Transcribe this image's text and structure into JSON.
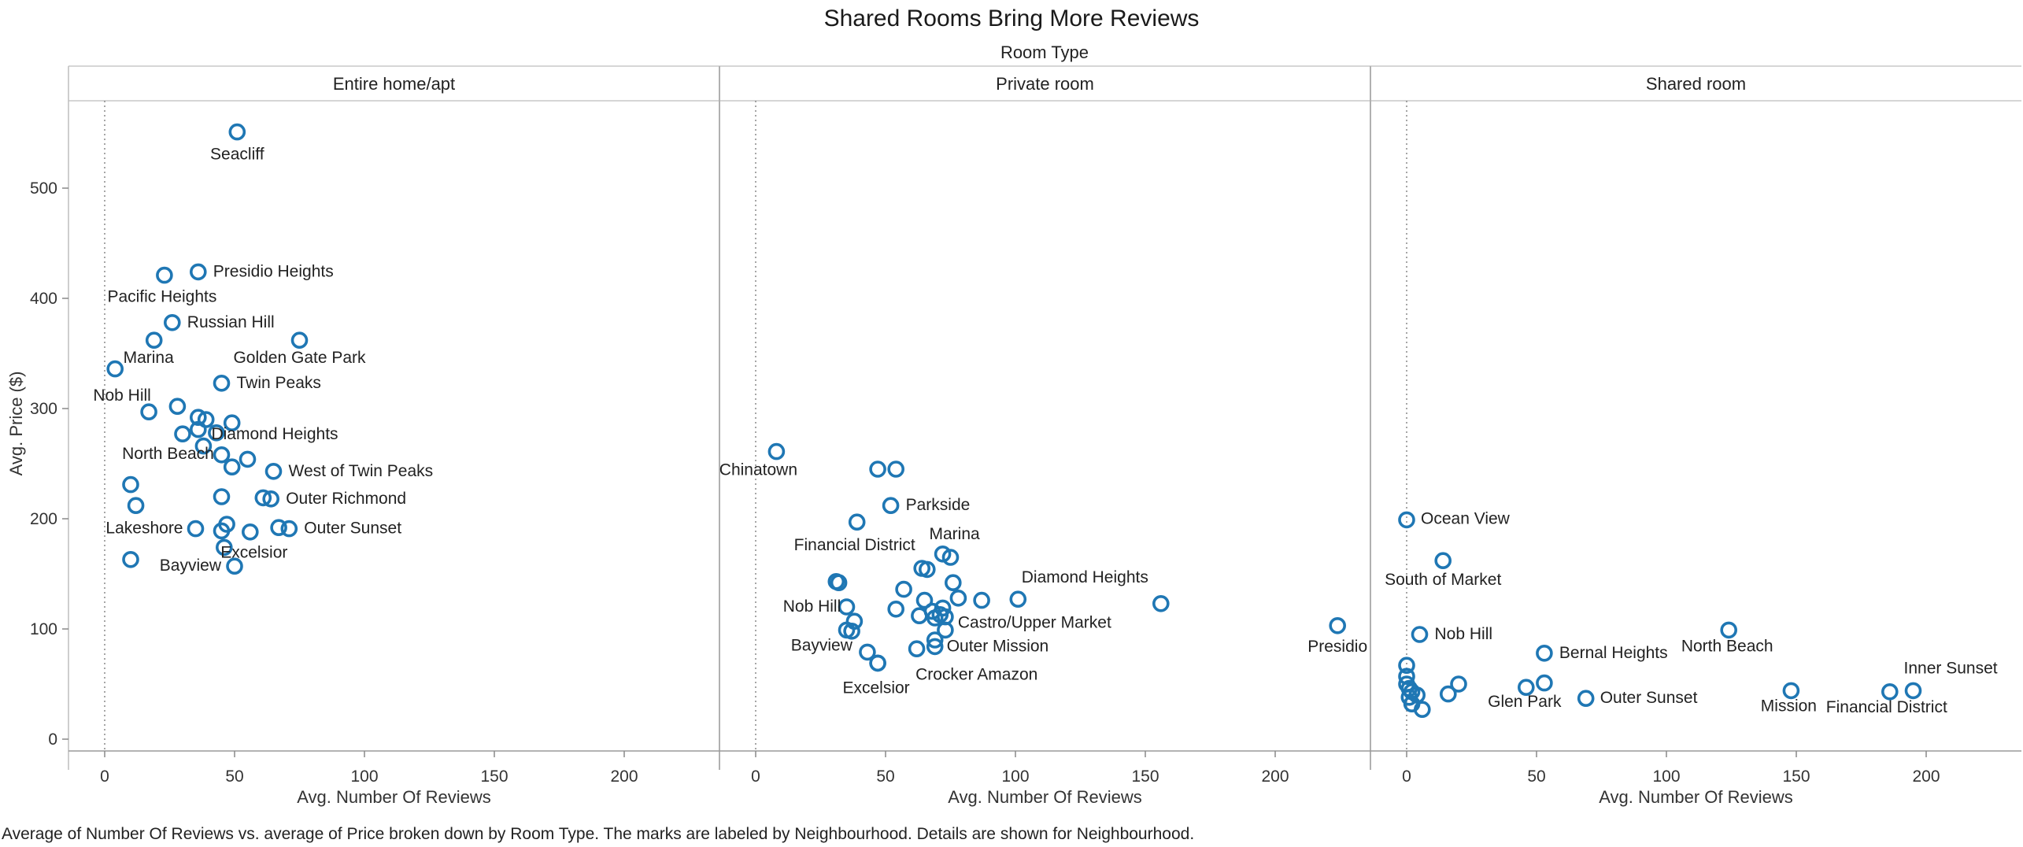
{
  "chart_data": {
    "type": "scatter",
    "title": "Shared Rooms Bring More Reviews",
    "facet_title": "Room Type",
    "xlabel": "Avg. Number Of Reviews",
    "ylabel": "Avg. Price ($)",
    "caption": "Average of Number Of Reviews vs. average of Price broken down by Room Type.  The marks are labeled by Neighbourhood.  Details are shown for Neighbourhood.",
    "xlim": [
      -14,
      236
    ],
    "ylim": [
      -10,
      575
    ],
    "xticks": [
      0,
      50,
      100,
      150,
      200
    ],
    "yticks": [
      0,
      100,
      200,
      300,
      400,
      500
    ],
    "marker_color": "#1f77b4",
    "panels": [
      {
        "name": "Entire home/apt",
        "points": [
          {
            "x": 51,
            "y": 551,
            "label": "Seacliff"
          },
          {
            "x": 36,
            "y": 424,
            "label": "Presidio Heights"
          },
          {
            "x": 23,
            "y": 421,
            "label": "Pacific Heights"
          },
          {
            "x": 26,
            "y": 378,
            "label": "Russian Hill"
          },
          {
            "x": 19,
            "y": 362,
            "label": "Marina"
          },
          {
            "x": 75,
            "y": 362,
            "label": "Golden Gate Park"
          },
          {
            "x": 4,
            "y": 336,
            "label": ""
          },
          {
            "x": 45,
            "y": 323,
            "label": "Twin Peaks"
          },
          {
            "x": 28,
            "y": 302,
            "label": ""
          },
          {
            "x": 17,
            "y": 297,
            "label": "Nob Hill"
          },
          {
            "x": 36,
            "y": 292,
            "label": ""
          },
          {
            "x": 39,
            "y": 290,
            "label": ""
          },
          {
            "x": 49,
            "y": 287,
            "label": ""
          },
          {
            "x": 36,
            "y": 281,
            "label": ""
          },
          {
            "x": 43,
            "y": 278,
            "label": ""
          },
          {
            "x": 30,
            "y": 277,
            "label": "Diamond Heights"
          },
          {
            "x": 38,
            "y": 266,
            "label": ""
          },
          {
            "x": 45,
            "y": 258,
            "label": "North Beach"
          },
          {
            "x": 55,
            "y": 254,
            "label": ""
          },
          {
            "x": 49,
            "y": 247,
            "label": ""
          },
          {
            "x": 65,
            "y": 243,
            "label": "West of Twin Peaks"
          },
          {
            "x": 10,
            "y": 231,
            "label": ""
          },
          {
            "x": 45,
            "y": 220,
            "label": ""
          },
          {
            "x": 61,
            "y": 219,
            "label": ""
          },
          {
            "x": 64,
            "y": 218,
            "label": "Outer Richmond"
          },
          {
            "x": 12,
            "y": 212,
            "label": ""
          },
          {
            "x": 47,
            "y": 195,
            "label": ""
          },
          {
            "x": 35,
            "y": 191,
            "label": "Lakeshore"
          },
          {
            "x": 67,
            "y": 192,
            "label": ""
          },
          {
            "x": 71,
            "y": 191,
            "label": "Outer Sunset"
          },
          {
            "x": 45,
            "y": 189,
            "label": ""
          },
          {
            "x": 56,
            "y": 188,
            "label": ""
          },
          {
            "x": 46,
            "y": 174,
            "label": "Excelsior"
          },
          {
            "x": 10,
            "y": 163,
            "label": ""
          },
          {
            "x": 50,
            "y": 157,
            "label": "Bayview"
          }
        ]
      },
      {
        "name": "Private room",
        "points": [
          {
            "x": 8,
            "y": 261,
            "label": "Chinatown"
          },
          {
            "x": 47,
            "y": 245,
            "label": ""
          },
          {
            "x": 54,
            "y": 245,
            "label": ""
          },
          {
            "x": 52,
            "y": 212,
            "label": "Parkside"
          },
          {
            "x": 39,
            "y": 197,
            "label": "Financial District"
          },
          {
            "x": 72,
            "y": 168,
            "label": "Marina"
          },
          {
            "x": 75,
            "y": 165,
            "label": ""
          },
          {
            "x": 64,
            "y": 155,
            "label": ""
          },
          {
            "x": 66,
            "y": 154,
            "label": ""
          },
          {
            "x": 31,
            "y": 143,
            "label": ""
          },
          {
            "x": 32,
            "y": 142,
            "label": ""
          },
          {
            "x": 76,
            "y": 142,
            "label": ""
          },
          {
            "x": 57,
            "y": 136,
            "label": ""
          },
          {
            "x": 78,
            "y": 128,
            "label": ""
          },
          {
            "x": 87,
            "y": 126,
            "label": ""
          },
          {
            "x": 101,
            "y": 127,
            "label": "Diamond Heights"
          },
          {
            "x": 65,
            "y": 126,
            "label": ""
          },
          {
            "x": 156,
            "y": 123,
            "label": ""
          },
          {
            "x": 35,
            "y": 120,
            "label": "Nob Hill"
          },
          {
            "x": 72,
            "y": 119,
            "label": ""
          },
          {
            "x": 54,
            "y": 118,
            "label": ""
          },
          {
            "x": 68,
            "y": 116,
            "label": ""
          },
          {
            "x": 71,
            "y": 113,
            "label": ""
          },
          {
            "x": 63,
            "y": 112,
            "label": ""
          },
          {
            "x": 73,
            "y": 111,
            "label": "Castro/Upper Market"
          },
          {
            "x": 69,
            "y": 110,
            "label": ""
          },
          {
            "x": 38,
            "y": 107,
            "label": ""
          },
          {
            "x": 224,
            "y": 103,
            "label": "Presidio"
          },
          {
            "x": 35,
            "y": 99,
            "label": ""
          },
          {
            "x": 37,
            "y": 98,
            "label": ""
          },
          {
            "x": 73,
            "y": 99,
            "label": ""
          },
          {
            "x": 69,
            "y": 90,
            "label": ""
          },
          {
            "x": 69,
            "y": 84,
            "label": "Outer Mission"
          },
          {
            "x": 62,
            "y": 82,
            "label": ""
          },
          {
            "x": 43,
            "y": 79,
            "label": "Bayview"
          },
          {
            "x": 47,
            "y": 69,
            "label": "Crocker Amazon"
          },
          {
            "x": 47,
            "y": 69,
            "label": "Excelsior"
          }
        ]
      },
      {
        "name": "Shared room",
        "points": [
          {
            "x": 0,
            "y": 199,
            "label": "Ocean View"
          },
          {
            "x": 14,
            "y": 162,
            "label": "South of Market"
          },
          {
            "x": 5,
            "y": 95,
            "label": "Nob Hill"
          },
          {
            "x": 124,
            "y": 99,
            "label": "North Beach"
          },
          {
            "x": 53,
            "y": 78,
            "label": "Bernal Heights"
          },
          {
            "x": 0,
            "y": 67,
            "label": ""
          },
          {
            "x": 0,
            "y": 57,
            "label": ""
          },
          {
            "x": 0,
            "y": 50,
            "label": ""
          },
          {
            "x": 1,
            "y": 46,
            "label": ""
          },
          {
            "x": 2,
            "y": 43,
            "label": ""
          },
          {
            "x": 4,
            "y": 40,
            "label": ""
          },
          {
            "x": 1,
            "y": 38,
            "label": ""
          },
          {
            "x": 2,
            "y": 32,
            "label": ""
          },
          {
            "x": 6,
            "y": 27,
            "label": ""
          },
          {
            "x": 20,
            "y": 50,
            "label": ""
          },
          {
            "x": 16,
            "y": 41,
            "label": ""
          },
          {
            "x": 46,
            "y": 47,
            "label": "Glen Park"
          },
          {
            "x": 53,
            "y": 51,
            "label": ""
          },
          {
            "x": 69,
            "y": 37,
            "label": "Outer Sunset"
          },
          {
            "x": 148,
            "y": 44,
            "label": "Mission"
          },
          {
            "x": 186,
            "y": 43,
            "label": "Financial District"
          },
          {
            "x": 195,
            "y": 44,
            "label": "Inner Sunset"
          }
        ]
      }
    ]
  }
}
